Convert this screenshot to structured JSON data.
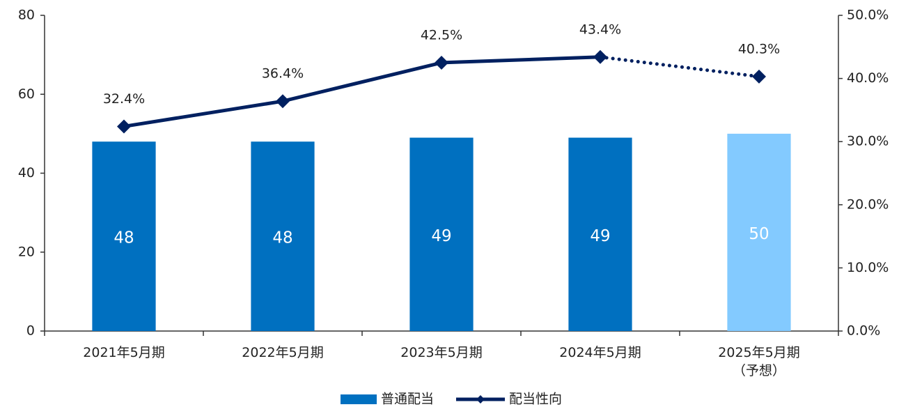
{
  "chart_data": {
    "type": "bar+line",
    "categories": [
      "2021年5月期",
      "2022年5月期",
      "2023年5月期",
      "2024年5月期",
      "2025年5月期\n（予想）"
    ],
    "series": [
      {
        "name": "普通配当",
        "type": "bar",
        "values": [
          48,
          48,
          49,
          49,
          50
        ],
        "colors": [
          "#0070c0",
          "#0070c0",
          "#0070c0",
          "#0070c0",
          "#83caff"
        ]
      },
      {
        "name": "配当性向",
        "type": "line",
        "axis": "y2",
        "color": "#002060",
        "values": [
          32.4,
          36.4,
          42.5,
          43.4,
          40.3
        ],
        "value_labels": [
          "32.4%",
          "36.4%",
          "42.5%",
          "43.4%",
          "40.3%"
        ],
        "dotted_from": 3
      }
    ],
    "ylim": [
      0,
      80
    ],
    "yticks": [
      0,
      20,
      40,
      60,
      80
    ],
    "y2lim": [
      0,
      50
    ],
    "y2ticks": [
      {
        "value": 0,
        "label": "0.0%"
      },
      {
        "value": 10,
        "label": "10.0%"
      },
      {
        "value": 20,
        "label": "20.0%"
      },
      {
        "value": 30,
        "label": "30.0%"
      },
      {
        "value": 40,
        "label": "40.0%"
      },
      {
        "value": 50,
        "label": "50.0%"
      }
    ],
    "grid": false,
    "legend": "bottom"
  }
}
